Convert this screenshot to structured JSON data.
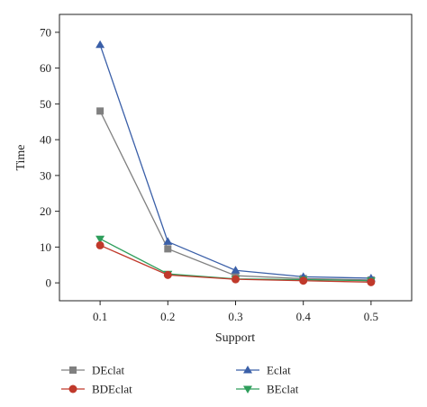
{
  "chart_data": {
    "type": "line",
    "title": "",
    "xlabel": "Support",
    "ylabel": "Time",
    "x": [
      0.1,
      0.2,
      0.3,
      0.4,
      0.5
    ],
    "x_tick_labels": [
      "0.1",
      "0.2",
      "0.3",
      "0.4",
      "0.5"
    ],
    "xlim": [
      0.04,
      0.56
    ],
    "ylim": [
      -5,
      75
    ],
    "y_ticks": [
      0,
      10,
      20,
      30,
      40,
      50,
      60,
      70
    ],
    "y_tick_labels": [
      "0",
      "10",
      "20",
      "30",
      "40",
      "50",
      "60",
      "70"
    ],
    "grid": false,
    "legend_position": "bottom",
    "series": [
      {
        "name": "DEclat",
        "values": [
          48,
          9.5,
          2,
          1.2,
          0.8
        ],
        "color": "#808080",
        "marker": "square"
      },
      {
        "name": "Eclat",
        "values": [
          66.5,
          11.5,
          3.5,
          1.7,
          1.3
        ],
        "color": "#3a5fa8",
        "marker": "triangle-up"
      },
      {
        "name": "BDEclat",
        "values": [
          10.5,
          2.2,
          1.0,
          0.6,
          0.2
        ],
        "color": "#c0392b",
        "marker": "circle"
      },
      {
        "name": "BEclat",
        "values": [
          12.3,
          2.5,
          1.1,
          0.9,
          0.6
        ],
        "color": "#2e9e5b",
        "marker": "triangle-down"
      }
    ]
  }
}
